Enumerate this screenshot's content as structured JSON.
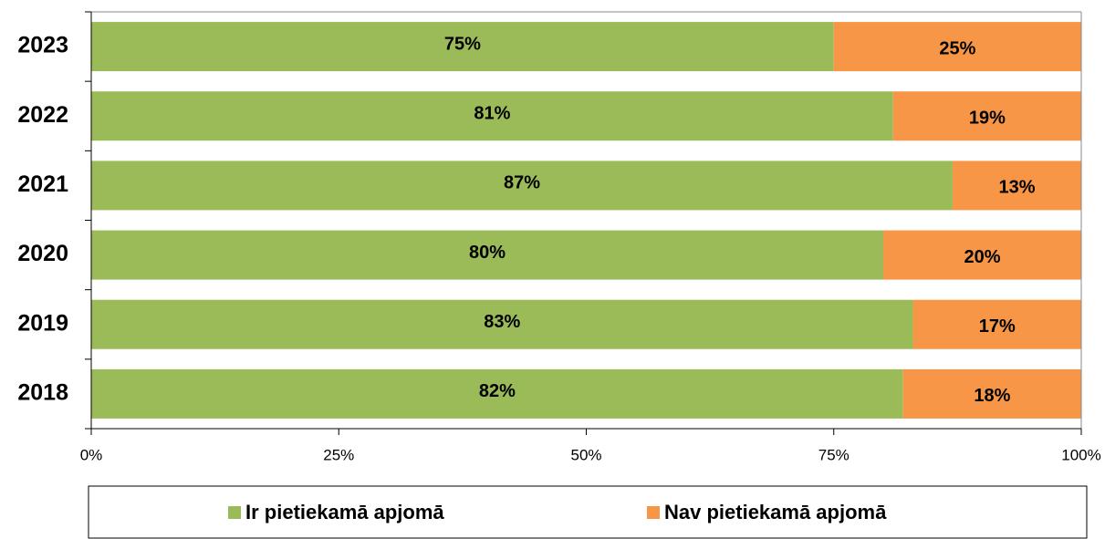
{
  "chart_data": {
    "type": "stacked_barh",
    "categories": [
      "2023",
      "2022",
      "2021",
      "2020",
      "2019",
      "2018"
    ],
    "series": [
      {
        "name": "Ir pietiekamā apjomā",
        "color": "#9bbb59",
        "values": [
          75,
          81,
          87,
          80,
          83,
          82
        ],
        "value_labels": [
          "75%",
          "81%",
          "87%",
          "80%",
          "83%",
          "82%"
        ]
      },
      {
        "name": "Nav pietiekamā apjomā",
        "color": "#f79646",
        "values": [
          25,
          19,
          13,
          20,
          17,
          18
        ],
        "value_labels": [
          "25%",
          "19%",
          "13%",
          "20%",
          "17%",
          "18%"
        ]
      }
    ],
    "xlim": [
      0,
      100
    ],
    "xticks": [
      {
        "value": 0,
        "label": "0%"
      },
      {
        "value": 25,
        "label": "25%"
      },
      {
        "value": 50,
        "label": "50%"
      },
      {
        "value": 75,
        "label": "75%"
      },
      {
        "value": 100,
        "label": "100%"
      }
    ],
    "legend": "bottom"
  }
}
